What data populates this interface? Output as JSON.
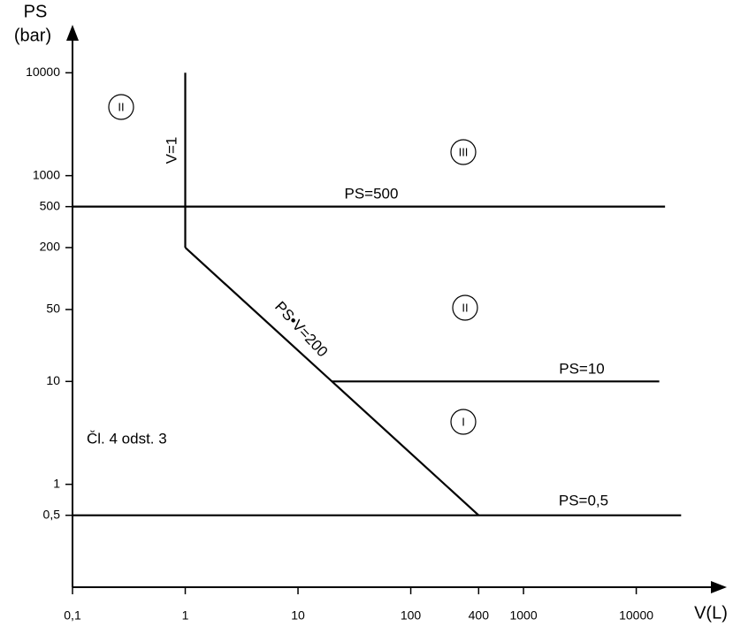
{
  "chart_data": {
    "type": "line",
    "log_x": true,
    "log_y": true,
    "ylabel": "PS",
    "ylabel_unit": "(bar)",
    "xlabel": "V(L)",
    "xlim": [
      0.1,
      55000
    ],
    "ylim": [
      0.1,
      25000
    ],
    "xticks": [
      {
        "value": 0.1,
        "label": "0,1"
      },
      1,
      10,
      100,
      400,
      1000,
      10000
    ],
    "yticks": [
      {
        "value": 0.5,
        "label": "0,5"
      },
      1,
      10,
      50,
      200,
      500,
      1000,
      10000
    ],
    "series": [
      {
        "name": "V=1",
        "color": "#000000",
        "x": [
          1,
          1
        ],
        "values": [
          200,
          10000
        ]
      },
      {
        "name": "PS=500",
        "color": "#000000",
        "x": [
          0.1,
          18000
        ],
        "values": [
          500,
          500
        ]
      },
      {
        "name": "PS•V=200",
        "color": "#000000",
        "x": [
          1,
          400
        ],
        "values": [
          200,
          0.5
        ]
      },
      {
        "name": "PS=10",
        "color": "#000000",
        "x": [
          20,
          16000
        ],
        "values": [
          10,
          10
        ]
      },
      {
        "name": "PS=0,5",
        "color": "#000000",
        "x": [
          0.1,
          25000
        ],
        "values": [
          0.5,
          0.5
        ]
      }
    ],
    "regions": [
      "II",
      "III",
      "II",
      "I"
    ],
    "note": "Čl. 4 odst. 3"
  }
}
